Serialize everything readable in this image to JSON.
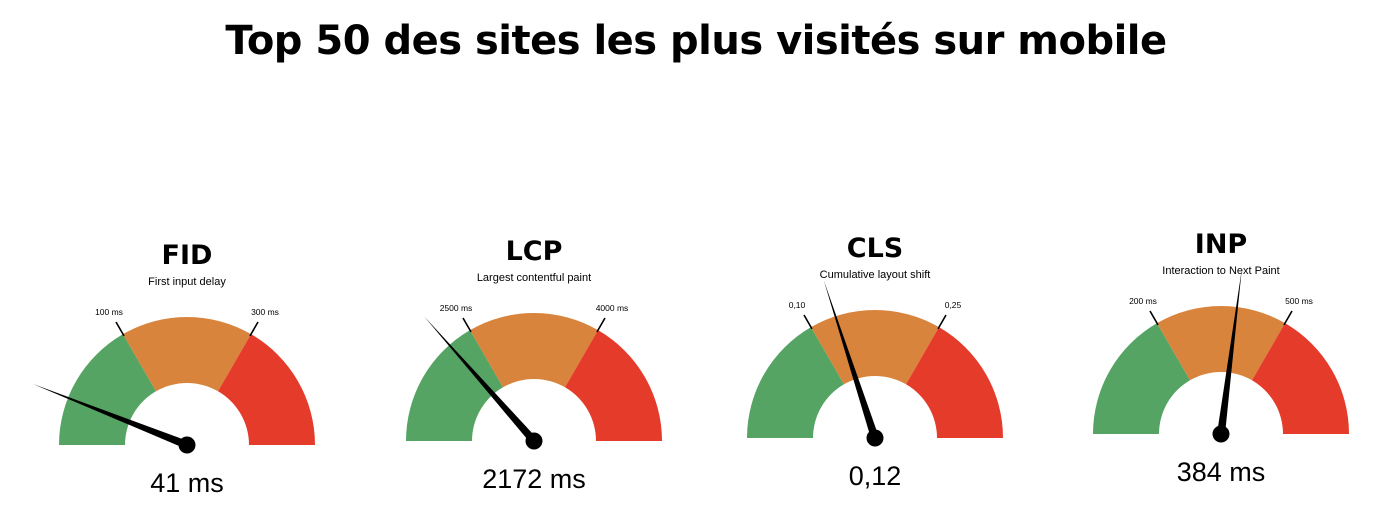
{
  "title": "Top 50 des sites les plus visités sur mobile",
  "colors": {
    "good": "#55a464",
    "needs_improvement": "#d9843c",
    "poor": "#e53b2b",
    "needle": "#000000"
  },
  "chart_data": [
    {
      "type": "gauge",
      "title": "FID",
      "subtitle": "First input delay",
      "thresholds": [
        100,
        300
      ],
      "threshold_labels": [
        "100 ms",
        "300 ms"
      ],
      "value": 41,
      "value_label": "41 ms",
      "needle_position": 0.12
    },
    {
      "type": "gauge",
      "title": "LCP",
      "subtitle": "Largest contentful paint",
      "thresholds": [
        2500,
        4000
      ],
      "threshold_labels": [
        "2500 ms",
        "4000 ms"
      ],
      "value": 2172,
      "value_label": "2172 ms",
      "needle_position": 0.27
    },
    {
      "type": "gauge",
      "title": "CLS",
      "subtitle": "Cumulative layout shift",
      "thresholds": [
        0.1,
        0.25
      ],
      "threshold_labels": [
        "0,10",
        "0,25"
      ],
      "value": 0.12,
      "value_label": "0,12",
      "needle_position": 0.4
    },
    {
      "type": "gauge",
      "title": "INP",
      "subtitle": "Interaction to Next Paint",
      "thresholds": [
        200,
        500
      ],
      "threshold_labels": [
        "200 ms",
        "500 ms"
      ],
      "value": 384,
      "value_label": "384 ms",
      "needle_position": 0.54
    }
  ]
}
